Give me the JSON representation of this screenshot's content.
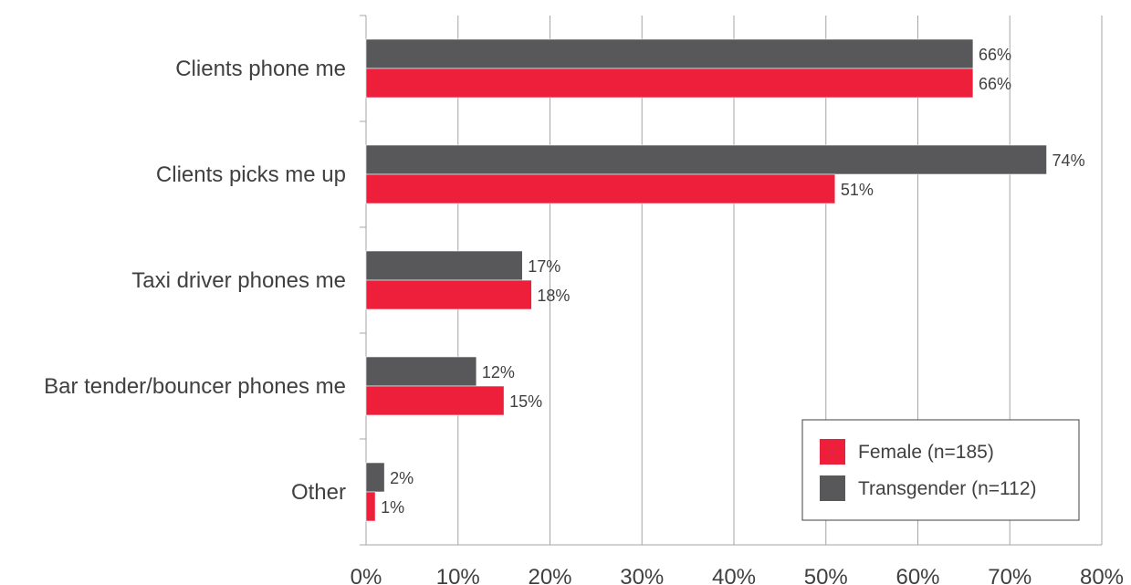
{
  "chart_data": {
    "type": "bar",
    "orientation": "horizontal",
    "categories": [
      "Clients phone me",
      "Clients picks me up",
      "Taxi driver phones me",
      "Bar tender/bouncer phones me",
      "Other"
    ],
    "series": [
      {
        "name": "Transgender (n=112)",
        "color": "#58585a",
        "values": [
          66,
          74,
          17,
          12,
          2
        ],
        "labels": [
          "66%",
          "74%",
          "17%",
          "12%",
          "2%"
        ]
      },
      {
        "name": "Female (n=185)",
        "color": "#ee1f3b",
        "values": [
          66,
          51,
          18,
          15,
          1
        ],
        "labels": [
          "66%",
          "51%",
          "18%",
          "15%",
          "1%"
        ]
      }
    ],
    "xlim": [
      0,
      80
    ],
    "xticks": [
      0,
      10,
      20,
      30,
      40,
      50,
      60,
      70,
      80
    ],
    "xtick_labels": [
      "0%",
      "10%",
      "20%",
      "30%",
      "40%",
      "50%",
      "60%",
      "70%",
      "80%"
    ],
    "grid": "vertical",
    "legend": {
      "placement": "bottom-right",
      "entries": [
        {
          "label": "Female (n=185)",
          "color": "#ee1f3b"
        },
        {
          "label": "Transgender (n=112)",
          "color": "#58585a"
        }
      ]
    }
  }
}
